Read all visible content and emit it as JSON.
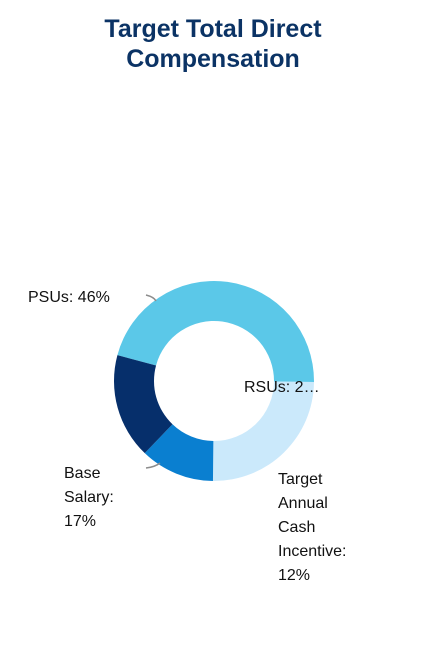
{
  "chart_data": {
    "type": "pie",
    "title_lines": [
      "Target Total Direct",
      "Compensation"
    ],
    "categories": [
      "PSUs",
      "RSUs",
      "Target Annual Cash Incentive",
      "Base Salary"
    ],
    "values": [
      46,
      25,
      12,
      17
    ],
    "colors": [
      "#5bc8e8",
      "#cbe9fb",
      "#0a7fd0",
      "#062f6b"
    ],
    "legend": "none",
    "data_labels": {
      "psus": [
        "PSUs: 46%"
      ],
      "rsus": [
        "RSUs: 2…"
      ],
      "tac": [
        "Target",
        "Annual",
        "Cash",
        "Incentive:",
        "12%"
      ],
      "base": [
        "Base",
        "Salary:",
        "17%"
      ]
    }
  }
}
